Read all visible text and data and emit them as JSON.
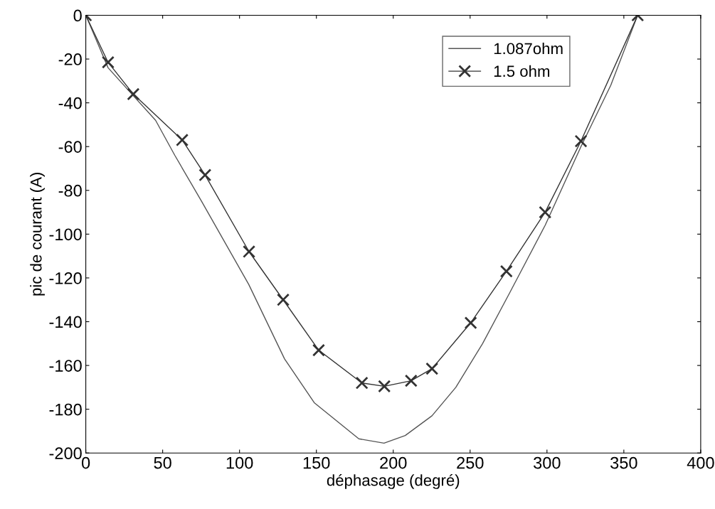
{
  "chart_data": {
    "type": "line",
    "xlabel": "déphasage (degré)",
    "ylabel": "pic de courant (A)",
    "xlim": [
      0,
      400
    ],
    "xticks": [
      0,
      50,
      100,
      150,
      200,
      250,
      300,
      350,
      400
    ],
    "ylim": [
      -200,
      0
    ],
    "yticks": [
      -200,
      -180,
      -160,
      -140,
      -120,
      -100,
      -80,
      -60,
      -40,
      -20,
      0
    ],
    "grid": false,
    "legend": "top right",
    "series": [
      {
        "name": "1.087ohm",
        "color": "#555555",
        "marker": "none",
        "x": [
          0,
          14.5,
          45.4,
          57.9,
          75.3,
          106,
          129.3,
          148.6,
          177.6,
          194,
          207.8,
          225.2,
          240.7,
          258.1,
          275.6,
          298.8,
          322.1,
          341.5,
          359
        ],
        "values": [
          0,
          -24,
          -48,
          -64,
          -85,
          -123,
          -157,
          -177,
          -193.5,
          -195.5,
          -192,
          -183,
          -170,
          -150,
          -127,
          -96,
          -60,
          -32,
          0
        ]
      },
      {
        "name": "1.5 ohm",
        "color": "#333333",
        "marker": "cross",
        "x": [
          0,
          14.5,
          30.9,
          62.7,
          77.6,
          106.2,
          128.4,
          151.5,
          179.6,
          194.2,
          211.6,
          225.2,
          250.4,
          273.6,
          298.8,
          322.1,
          359
        ],
        "values": [
          0,
          -21.5,
          -36,
          -57,
          -73,
          -108,
          -130,
          -153,
          -168,
          -169.5,
          -167,
          -161.5,
          -140.5,
          -117,
          -90,
          -57.5,
          0
        ]
      }
    ]
  }
}
